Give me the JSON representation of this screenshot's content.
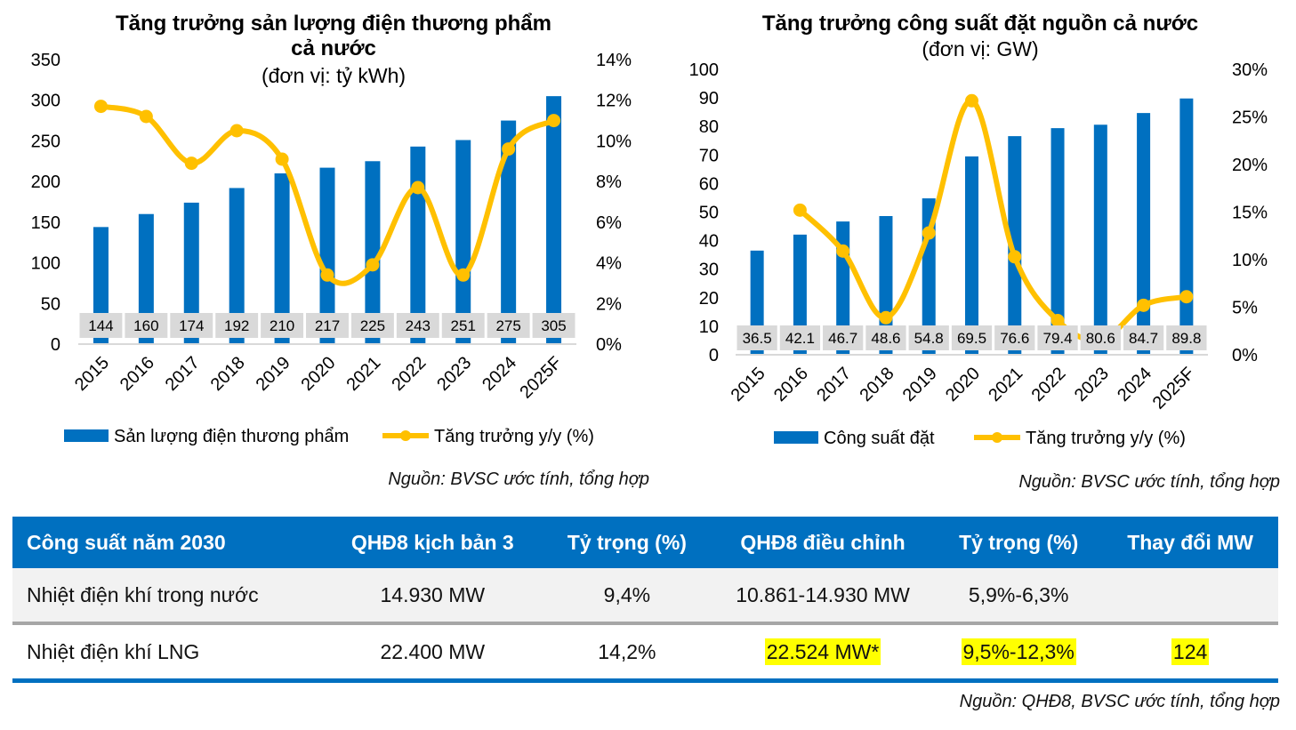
{
  "chart_data": [
    {
      "type": "bar+line",
      "title": "Tăng trưởng sản lượng điện thương phẩm cả nước",
      "subtitle": "(đơn vị: tỷ kWh)",
      "categories": [
        "2015",
        "2016",
        "2017",
        "2018",
        "2019",
        "2020",
        "2021",
        "2022",
        "2023",
        "2024",
        "2025F"
      ],
      "series": [
        {
          "name": "Sản lượng điện thương phẩm",
          "type": "bar",
          "axis": "left",
          "color": "#0070c0",
          "values": [
            144,
            160,
            174,
            192,
            210,
            217,
            225,
            243,
            251,
            275,
            305
          ]
        },
        {
          "name": "Tăng trưởng y/y (%)",
          "type": "line",
          "axis": "right",
          "color": "#ffc000",
          "values": [
            11.7,
            11.2,
            8.9,
            10.5,
            9.1,
            3.4,
            3.9,
            7.7,
            3.4,
            9.6,
            11.0
          ]
        }
      ],
      "y_left": {
        "min": 0,
        "max": 350,
        "ticks": [
          "0",
          "50",
          "100",
          "150",
          "200",
          "250",
          "300",
          "350"
        ]
      },
      "y_right": {
        "min": 0,
        "max": 14,
        "ticks": [
          "0%",
          "2%",
          "4%",
          "6%",
          "8%",
          "10%",
          "12%",
          "14%"
        ]
      },
      "legend": "bottom",
      "grid": false,
      "source": "Nguồn: BVSC ước tính, tổng hợp"
    },
    {
      "type": "bar+line",
      "title": "Tăng trưởng công suất đặt nguồn cả nước",
      "subtitle": "(đơn vị: GW)",
      "categories": [
        "2015",
        "2016",
        "2017",
        "2018",
        "2019",
        "2020",
        "2021",
        "2022",
        "2023",
        "2024",
        "2025F"
      ],
      "series": [
        {
          "name": "Công suất đặt",
          "type": "bar",
          "axis": "left",
          "color": "#0070c0",
          "values": [
            36.5,
            42.1,
            46.7,
            48.6,
            54.8,
            69.5,
            76.6,
            79.4,
            80.6,
            84.7,
            89.8
          ]
        },
        {
          "name": "Tăng trưởng y/y (%)",
          "type": "line",
          "axis": "right",
          "color": "#ffc000",
          "values": [
            null,
            15.2,
            10.9,
            3.9,
            12.8,
            26.7,
            10.3,
            3.6,
            1.5,
            5.2,
            6.1
          ]
        }
      ],
      "y_left": {
        "min": 0,
        "max": 100,
        "ticks": [
          "0",
          "10",
          "20",
          "30",
          "40",
          "50",
          "60",
          "70",
          "80",
          "90",
          "100"
        ]
      },
      "y_right": {
        "min": 0,
        "max": 30,
        "ticks": [
          "0%",
          "5%",
          "10%",
          "15%",
          "20%",
          "25%",
          "30%"
        ]
      },
      "legend": "bottom",
      "grid": false,
      "source": "Nguồn: BVSC ước tính, tổng hợp"
    }
  ],
  "table": {
    "headers": [
      "Công suất năm 2030",
      "QHĐ8 kịch bản 3",
      "Tỷ trọng (%)",
      "QHĐ8 điều chỉnh",
      "Tỷ trọng (%)",
      "Thay đổi MW"
    ],
    "rows": [
      [
        "Nhiệt điện khí trong nước",
        "14.930 MW",
        "9,4%",
        "10.861-14.930 MW",
        "5,9%-6,3%",
        ""
      ],
      [
        "Nhiệt điện khí LNG",
        "22.400 MW",
        "14,2%",
        "22.524 MW*",
        "9,5%-12,3%",
        "124"
      ]
    ],
    "highlight_color": "#ffff00",
    "source": "Nguồn: QHĐ8, BVSC ước tính, tổng hợp"
  }
}
